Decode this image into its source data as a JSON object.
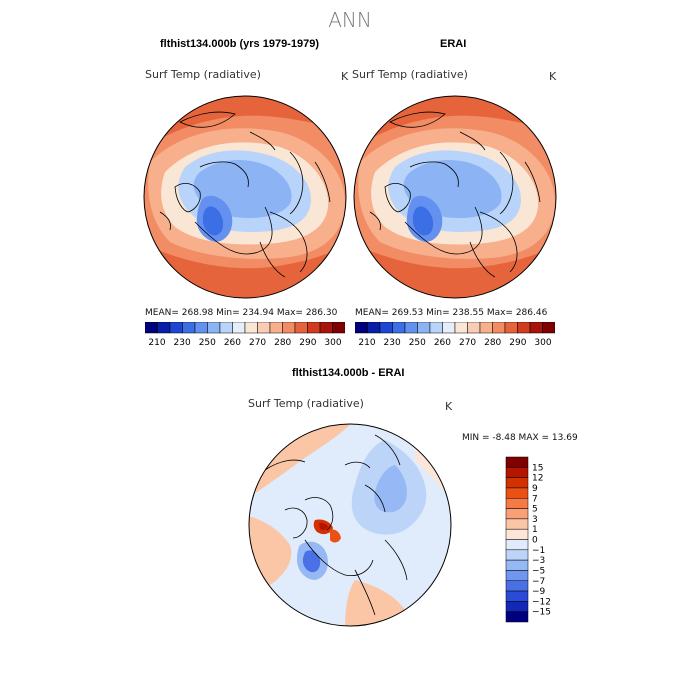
{
  "page": {
    "title": "ANN"
  },
  "panels": [
    {
      "title": "flthist134.000b (yrs 1979-1979)",
      "variable": "Surf Temp (radiative)",
      "units": "K",
      "stats": "MEAN=  268.98     Min=  234.94     Max=  286.30"
    },
    {
      "title": "ERAI",
      "variable": "Surf Temp (radiative)",
      "units": "K",
      "stats": "MEAN=  269.53     Min=  238.55     Max=  286.46"
    }
  ],
  "colorbar_top": {
    "colors": [
      "#00007f",
      "#0a1ea8",
      "#1e46d2",
      "#3c6ee6",
      "#6491f0",
      "#8cb4f5",
      "#b9d4fa",
      "#e6eefa",
      "#fae6d4",
      "#f9cdb4",
      "#f7af8c",
      "#f28c64",
      "#e6643c",
      "#d23c1e",
      "#a8140a",
      "#7f0000"
    ],
    "labels": [
      "210",
      "230",
      "250",
      "260",
      "270",
      "280",
      "290",
      "300"
    ]
  },
  "diff_panel": {
    "title": "flthist134.000b - ERAI",
    "variable": "Surf Temp (radiative)",
    "units": "K",
    "stats": "MIN =    -8.48  MAX =    13.69"
  },
  "colorbar_diff": {
    "colors": [
      "#7f0000",
      "#b41400",
      "#d23200",
      "#eb5014",
      "#f57a46",
      "#f9a078",
      "#fbc6a6",
      "#fde6d8",
      "#e0ecfb",
      "#bcd4f8",
      "#96b8f5",
      "#7096f0",
      "#4a70e6",
      "#2a4ad8",
      "#1428b8",
      "#00007f"
    ],
    "labels": [
      "15",
      "12",
      "9",
      "7",
      "5",
      "3",
      "1",
      "0",
      "−1",
      "−3",
      "−5",
      "−7",
      "−9",
      "−12",
      "−15"
    ]
  }
}
